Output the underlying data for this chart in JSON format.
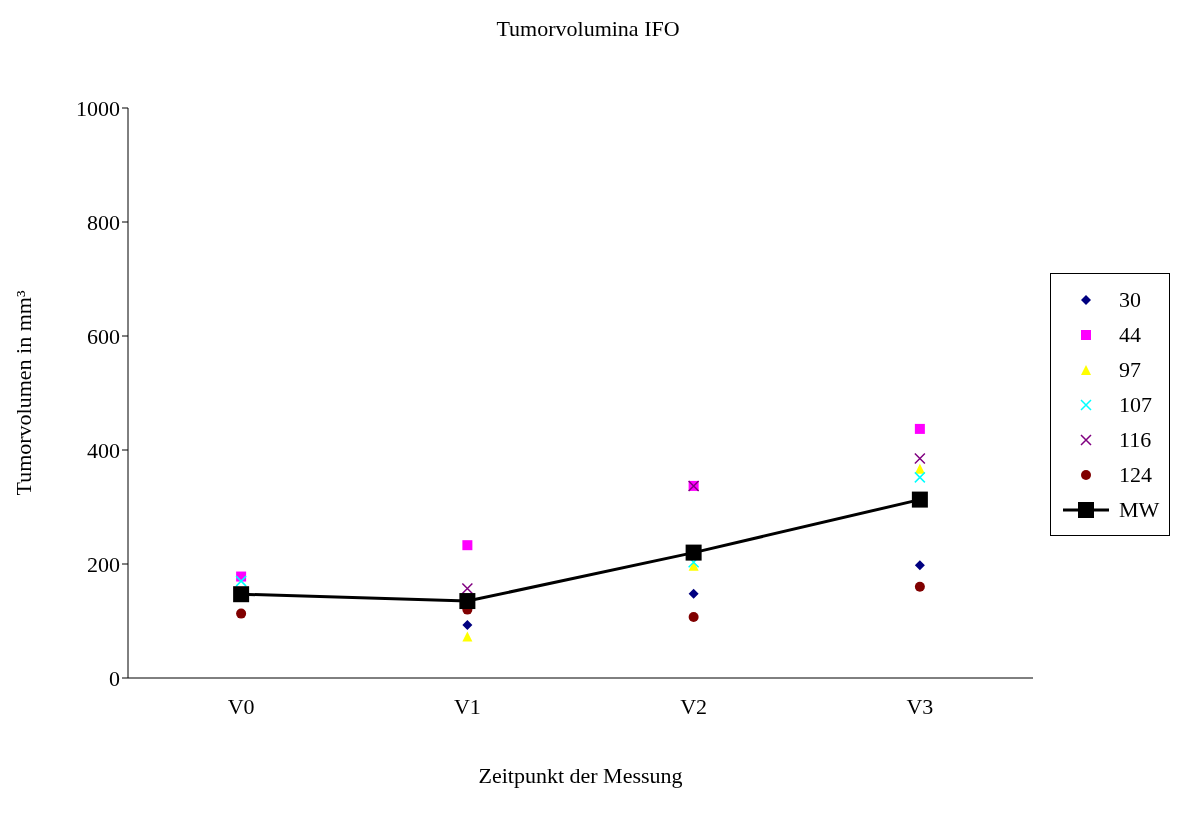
{
  "chart_data": {
    "type": "scatter",
    "title": "Tumorvolumina IFO",
    "xlabel": "Zeitpunkt der Messung",
    "ylabel": "Tumorvolumen in mm³",
    "categories": [
      "V0",
      "V1",
      "V2",
      "V3"
    ],
    "series": [
      {
        "name": "30",
        "color": "#000080",
        "marker": "diamond",
        "values": [
          null,
          93,
          148,
          198
        ]
      },
      {
        "name": "44",
        "color": "#ff00ff",
        "marker": "square",
        "values": [
          178,
          233,
          337,
          437
        ]
      },
      {
        "name": "97",
        "color": "#ffff00",
        "marker": "triangle",
        "values": [
          null,
          73,
          197,
          367
        ]
      },
      {
        "name": "107",
        "color": "#00ffff",
        "marker": "cross",
        "values": [
          170,
          null,
          203,
          352
        ]
      },
      {
        "name": "116",
        "color": "#800080",
        "marker": "cross",
        "values": [
          null,
          157,
          337,
          385
        ]
      },
      {
        "name": "124",
        "color": "#800000",
        "marker": "circle",
        "values": [
          113,
          120,
          107,
          160
        ]
      },
      {
        "name": "MW",
        "type": "line",
        "color": "#000000",
        "marker": "square",
        "line_style": "solid",
        "values": [
          147,
          135,
          220,
          313
        ]
      }
    ],
    "ylim": [
      0,
      1000
    ],
    "yticks": [
      0,
      200,
      400,
      600,
      800,
      1000
    ],
    "grid": false,
    "legend": "right"
  }
}
